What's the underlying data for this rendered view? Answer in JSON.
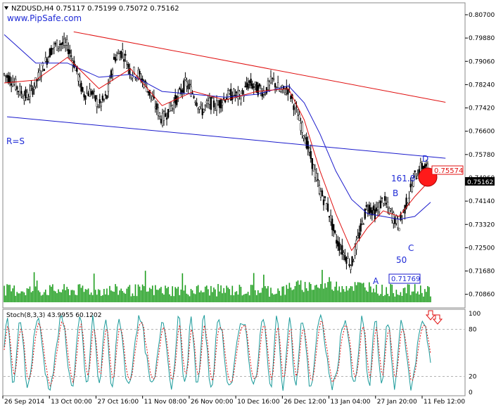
{
  "header": {
    "symbol_line": "NZDUSD,H4  0.75117 0.75199 0.75072 0.75162",
    "watermark": "www.PipSafe.com"
  },
  "colors": {
    "background": "#ffffff",
    "candles": "#000000",
    "trendline_upper": "#e01010",
    "trendline_lower": "#1a1acc",
    "ma_fast": "#e01010",
    "ma_slow": "#1a1acc",
    "volume": "#1f9e1f",
    "stoch_main": "#1a9a9a",
    "stoch_signal": "#e01010",
    "pattern_labels": "#1f2bd6",
    "target_marker": "#e01010"
  },
  "annotations": {
    "rs_label": "R=S",
    "point_a": "A",
    "point_b": "B",
    "point_c": "C",
    "point_d": "D",
    "fib_50": "50",
    "fib_1618": "161.8",
    "low_price_box": "0.71769",
    "target_price_box": "0.75574",
    "current_price_box": "0.75162"
  },
  "stochastic": {
    "label": "Stoch(8,3,3) 43.9955 60.1202",
    "levels": [
      "100",
      "80",
      "20",
      "0"
    ],
    "arrow_icons": [
      "down-arrow-icon",
      "down-arrow-icon"
    ]
  },
  "chart_data": {
    "type": "candlestick",
    "symbol": "NZDUSD",
    "timeframe": "H4",
    "ohlc_current": {
      "open": 0.75117,
      "high": 0.75199,
      "low": 0.75072,
      "close": 0.75162
    },
    "y_ticks": [
      "0.80700",
      "0.79880",
      "0.79060",
      "0.78240",
      "0.77420",
      "0.76600",
      "0.75780",
      "0.74960",
      "0.74140",
      "0.73320",
      "0.72500",
      "0.71680",
      "0.70860"
    ],
    "ylim": [
      0.7058,
      0.8112
    ],
    "x_ticks": [
      "26 Sep 2014",
      "13 Oct 00:00",
      "27 Oct 16:00",
      "11 Nov 08:00",
      "26 Nov 00:00",
      "10 Dec 16:00",
      "26 Dec 12:00",
      "13 Jan 04:00",
      "27 Jan 20:00",
      "11 Feb 12:00"
    ],
    "price_path": [
      [
        0,
        0.786
      ],
      [
        1,
        0.784
      ],
      [
        2,
        0.78
      ],
      [
        3,
        0.778
      ],
      [
        4,
        0.783
      ],
      [
        5,
        0.789
      ],
      [
        6,
        0.795
      ],
      [
        7,
        0.797
      ],
      [
        8,
        0.796
      ],
      [
        9,
        0.789
      ],
      [
        10,
        0.779
      ],
      [
        11,
        0.78
      ],
      [
        12,
        0.775
      ],
      [
        13,
        0.778
      ],
      [
        14,
        0.792
      ],
      [
        15,
        0.794
      ],
      [
        16,
        0.787
      ],
      [
        17,
        0.786
      ],
      [
        18,
        0.782
      ],
      [
        19,
        0.776
      ],
      [
        20,
        0.77
      ],
      [
        21,
        0.774
      ],
      [
        22,
        0.778
      ],
      [
        23,
        0.783
      ],
      [
        24,
        0.779
      ],
      [
        25,
        0.773
      ],
      [
        26,
        0.776
      ],
      [
        27,
        0.775
      ],
      [
        28,
        0.778
      ],
      [
        29,
        0.779
      ],
      [
        30,
        0.778
      ],
      [
        31,
        0.783
      ],
      [
        32,
        0.781
      ],
      [
        33,
        0.78
      ],
      [
        34,
        0.784
      ],
      [
        35,
        0.78
      ],
      [
        36,
        0.781
      ],
      [
        37,
        0.773
      ],
      [
        38,
        0.765
      ],
      [
        39,
        0.755
      ],
      [
        40,
        0.745
      ],
      [
        41,
        0.739
      ],
      [
        42,
        0.728
      ],
      [
        43,
        0.723
      ],
      [
        44,
        0.719
      ],
      [
        45,
        0.73
      ],
      [
        46,
        0.74
      ],
      [
        47,
        0.737
      ],
      [
        48,
        0.742
      ],
      [
        49,
        0.737
      ],
      [
        50,
        0.733
      ],
      [
        51,
        0.741
      ],
      [
        52,
        0.75
      ],
      [
        53,
        0.754
      ],
      [
        54,
        0.7516
      ]
    ],
    "ma_fast": [
      [
        0,
        0.783
      ],
      [
        4,
        0.784
      ],
      [
        8,
        0.792
      ],
      [
        12,
        0.781
      ],
      [
        16,
        0.788
      ],
      [
        20,
        0.775
      ],
      [
        24,
        0.78
      ],
      [
        28,
        0.777
      ],
      [
        32,
        0.78
      ],
      [
        36,
        0.781
      ],
      [
        38,
        0.77
      ],
      [
        40,
        0.752
      ],
      [
        42,
        0.737
      ],
      [
        44,
        0.724
      ],
      [
        46,
        0.732
      ],
      [
        48,
        0.738
      ],
      [
        50,
        0.736
      ],
      [
        52,
        0.743
      ],
      [
        54,
        0.749
      ]
    ],
    "ma_slow": [
      [
        0,
        0.8
      ],
      [
        4,
        0.79
      ],
      [
        8,
        0.79
      ],
      [
        12,
        0.785
      ],
      [
        16,
        0.786
      ],
      [
        20,
        0.78
      ],
      [
        24,
        0.779
      ],
      [
        28,
        0.778
      ],
      [
        32,
        0.779
      ],
      [
        36,
        0.782
      ],
      [
        38,
        0.776
      ],
      [
        40,
        0.765
      ],
      [
        42,
        0.752
      ],
      [
        44,
        0.742
      ],
      [
        46,
        0.737
      ],
      [
        48,
        0.736
      ],
      [
        50,
        0.735
      ],
      [
        52,
        0.736
      ],
      [
        54,
        0.741
      ]
    ],
    "trendline_upper": {
      "from": [
        8.8,
        0.801
      ],
      "to": [
        55.0,
        0.7762
      ]
    },
    "trendline_lower": {
      "from": [
        0,
        0.7711
      ],
      "to": [
        55.0,
        0.7565
      ]
    },
    "points": {
      "A": [
        44,
        0.7177
      ],
      "B": [
        49,
        0.7455
      ],
      "C": [
        50,
        0.7315
      ],
      "D": [
        53,
        0.758
      ]
    },
    "target_price": 0.75574,
    "stochastic": {
      "k": 43.9955,
      "d": 60.1202,
      "levels": [
        100,
        80,
        20,
        0
      ]
    }
  }
}
